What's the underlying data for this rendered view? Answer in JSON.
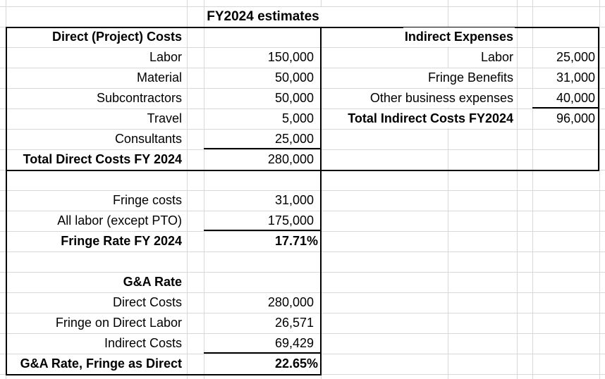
{
  "title": "FY2024 estimates",
  "direct_costs": {
    "header": "Direct (Project) Costs",
    "items": [
      {
        "label": "Labor",
        "value": "150,000"
      },
      {
        "label": "Material",
        "value": "50,000"
      },
      {
        "label": "Subcontractors",
        "value": "50,000"
      },
      {
        "label": "Travel",
        "value": "5,000"
      },
      {
        "label": "Consultants",
        "value": "25,000"
      }
    ],
    "total_label": "Total Direct Costs FY 2024",
    "total_value": "280,000"
  },
  "indirect_expenses": {
    "header": "Indirect Expenses",
    "items": [
      {
        "label": "Labor",
        "value": "25,000"
      },
      {
        "label": "Fringe Benefits",
        "value": "31,000"
      },
      {
        "label": "Other business expenses",
        "value": "40,000"
      }
    ],
    "total_label": "Total Indirect Costs FY2024",
    "total_value": "96,000"
  },
  "fringe_rate": {
    "items": [
      {
        "label": "Fringe costs",
        "value": "31,000"
      },
      {
        "label": "All labor (except PTO)",
        "value": "175,000"
      }
    ],
    "total_label": "Fringe Rate FY 2024",
    "total_value": "17.71%"
  },
  "ga_rate": {
    "header": "G&A Rate",
    "items": [
      {
        "label": "Direct Costs",
        "value": "280,000"
      },
      {
        "label": "Fringe on Direct Labor",
        "value": "26,571"
      },
      {
        "label": "Indirect Costs",
        "value": "69,429"
      }
    ],
    "total_label": "G&A Rate, Fringe as Direct",
    "total_value": "22.65%"
  }
}
